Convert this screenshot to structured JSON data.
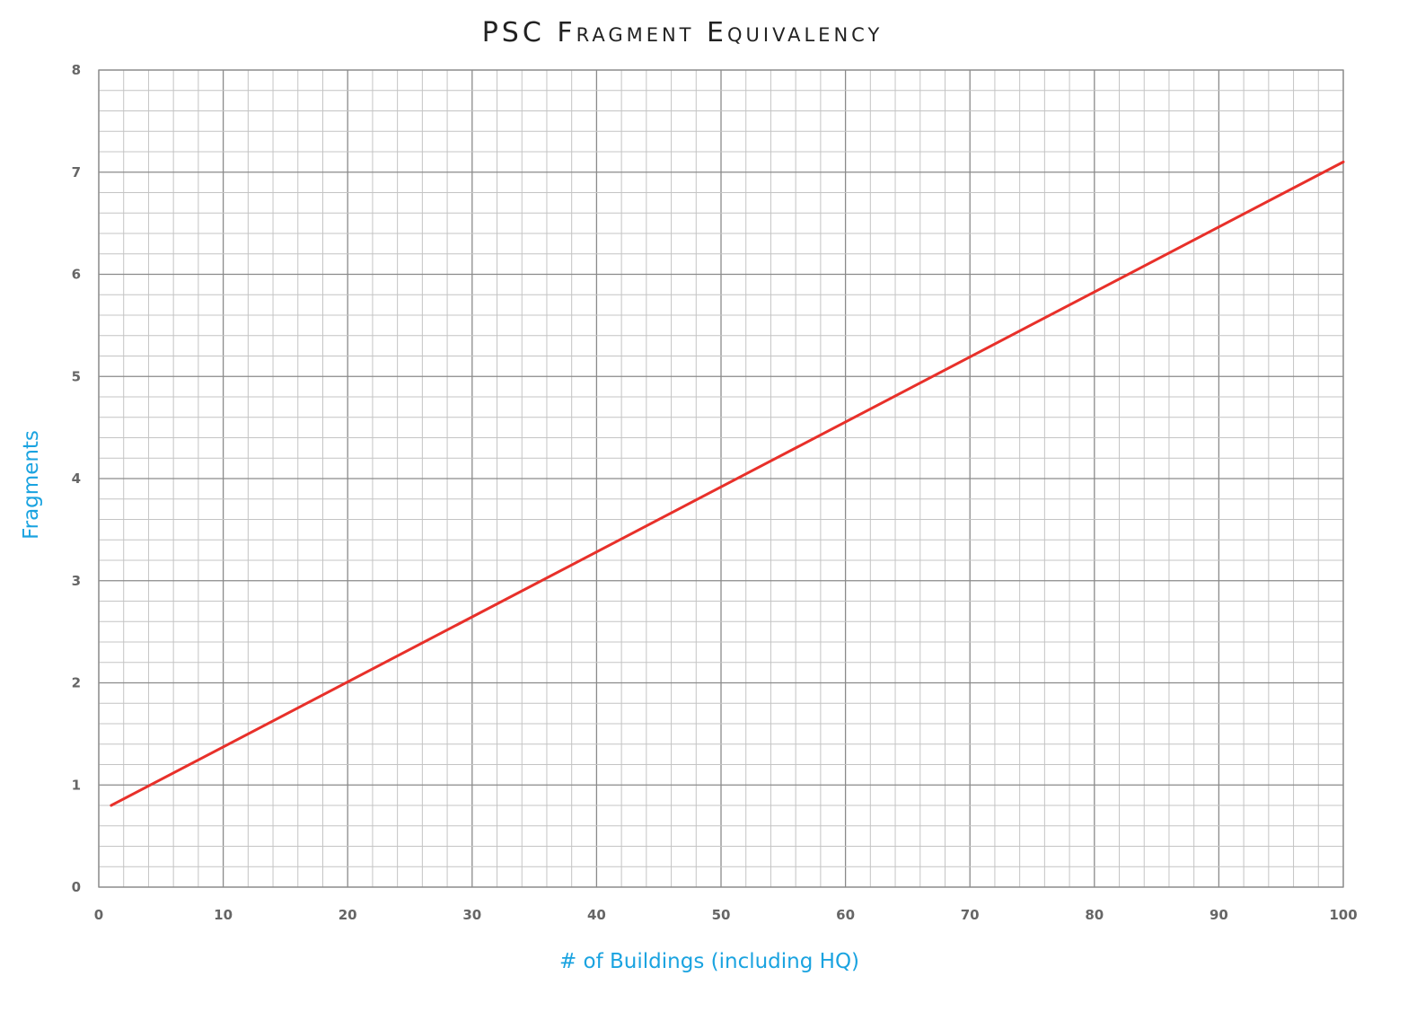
{
  "chart_data": {
    "type": "line",
    "title": "PSC Fragment Equivalency",
    "xlabel": "# of Buildings (including HQ)",
    "ylabel": "Fragments",
    "xlim": [
      0,
      100
    ],
    "ylim": [
      0,
      8
    ],
    "x_ticks": [
      "0",
      "10",
      "20",
      "30",
      "40",
      "50",
      "60",
      "70",
      "80",
      "90",
      "100"
    ],
    "y_ticks": [
      "0",
      "1",
      "2",
      "3",
      "4",
      "5",
      "6",
      "7",
      "8"
    ],
    "grid": true,
    "legend": "none",
    "series": [
      {
        "color": "#e8302a",
        "x": [
          1,
          100
        ],
        "y": [
          0.8,
          7.1
        ]
      }
    ]
  }
}
